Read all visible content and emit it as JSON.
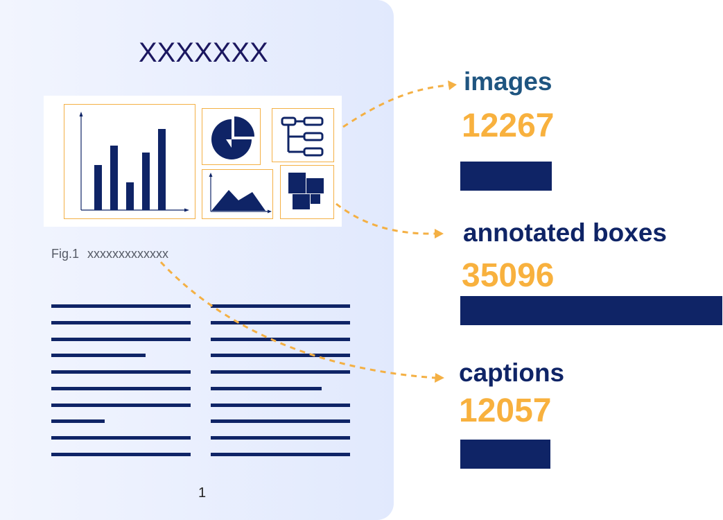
{
  "document": {
    "title": "XXXXXXX",
    "caption_label": "Fig.1",
    "caption_text": "xxxxxxxxxxxxx",
    "page_number": "1"
  },
  "stats": [
    {
      "label": "images",
      "value": "12267",
      "count": 12267,
      "label_color": "#1f5580"
    },
    {
      "label": "annotated boxes",
      "value": "35096",
      "count": 35096,
      "label_color": "#0f2466"
    },
    {
      "label": "captions",
      "value": "12057",
      "count": 12057,
      "label_color": "#0f2466"
    }
  ],
  "colors": {
    "navy": "#0f2466",
    "accent": "#f8b13e",
    "title": "#1b1760",
    "panel": "#e8eefd"
  },
  "icons": [
    "bar-chart-icon",
    "pie-chart-icon",
    "flowchart-icon",
    "area-chart-icon",
    "tiles-icon"
  ]
}
